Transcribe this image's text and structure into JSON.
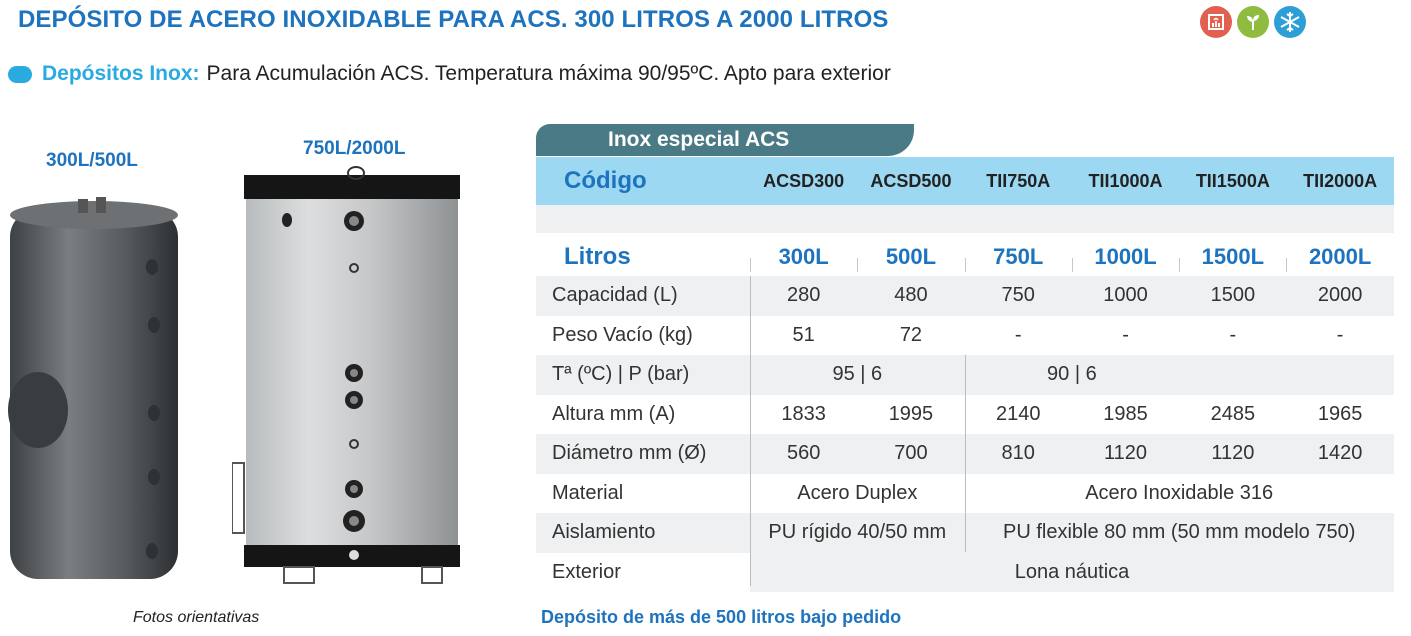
{
  "header": {
    "title": "DEPÓSITO DE ACERO INOXIDABLE PARA ACS. 300 LITROS  A 2000 LITROS",
    "badges": [
      "heating-icon",
      "plant-icon",
      "snowflake-icon"
    ],
    "colors": {
      "title": "#1e73be",
      "accent": "#29aae1",
      "badge1": "#e2604f",
      "badge2": "#8fbc3f",
      "badge3": "#2e9fd6"
    }
  },
  "subtitle": {
    "strong": "Depósitos Inox:",
    "rest": "Para Acumulación ACS. Temperatura máxima 90/95ºC. Apto para exterior"
  },
  "photos": {
    "label_small": "300L/500L",
    "label_large": "750L/2000L",
    "note": "Fotos orientativas"
  },
  "table": {
    "tab_title": "Inox especial ACS",
    "code_header": "Código",
    "codes": [
      "ACSD300",
      "ACSD500",
      "TII750A",
      "TII1000A",
      "TII1500A",
      "TII2000A"
    ],
    "litros_header": "Litros",
    "litros": [
      "300L",
      "500L",
      "750L",
      "1000L",
      "1500L",
      "2000L"
    ],
    "rows": [
      {
        "label": "Capacidad (L)",
        "values": [
          "280",
          "480",
          "750",
          "1000",
          "1500",
          "2000"
        ]
      },
      {
        "label": "Peso Vacío (kg)",
        "values": [
          "51",
          "72",
          "-",
          "-",
          "-",
          "-"
        ]
      },
      {
        "label": "Tª  (ºC)  |  P (bar)",
        "group_a": "95  |  6",
        "group_b": "90  |  6"
      },
      {
        "label": "Altura mm (A)",
        "values": [
          "1833",
          "1995",
          "2140",
          "1985",
          "2485",
          "1965"
        ]
      },
      {
        "label": "Diámetro mm (Ø)",
        "values": [
          "560",
          "700",
          "810",
          "1120",
          "1120",
          "1420"
        ]
      },
      {
        "label": "Material",
        "group_a": "Acero Duplex",
        "group_b": "Acero Inoxidable 316"
      },
      {
        "label": "Aislamiento",
        "group_a": "PU rígido 40/50 mm",
        "group_b": "PU flexible 80 mm (50 mm modelo 750)"
      },
      {
        "label": "Exterior",
        "all": "Lona náutica"
      }
    ]
  },
  "footer_note": "Depósito de más de 500 litros bajo pedido"
}
